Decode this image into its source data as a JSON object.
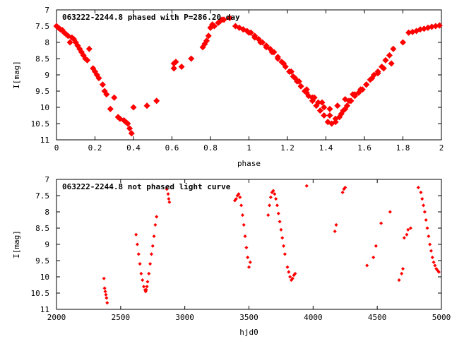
{
  "chart_data": [
    {
      "type": "scatter",
      "title": "063222-2244.8 phased with P=286.20 day",
      "xlabel": "phase",
      "ylabel": "I[mag]",
      "xlim": [
        0,
        2
      ],
      "ylim": [
        11,
        7
      ],
      "y_inverted": true,
      "grid": false,
      "xticks": [
        "0",
        "0.2",
        "0.4",
        "0.6",
        "0.8",
        "1",
        "1.2",
        "1.4",
        "1.6",
        "1.8",
        "2"
      ],
      "yticks": [
        "7",
        "7.5",
        "8",
        "8.5",
        "9",
        "9.5",
        "10",
        "10.5",
        "11"
      ],
      "marker_color": "#ff0000",
      "series": [
        {
          "x": [
            0.0,
            0.01,
            0.02,
            0.03,
            0.04,
            0.05,
            0.06,
            0.07,
            0.08,
            0.09,
            0.1,
            0.11,
            0.12,
            0.13,
            0.14,
            0.15,
            0.16,
            0.17,
            0.19,
            0.2,
            0.21,
            0.22,
            0.24,
            0.25,
            0.26,
            0.28,
            0.3,
            0.32,
            0.33,
            0.35,
            0.36,
            0.37,
            0.38,
            0.39,
            0.4,
            0.47,
            0.52,
            0.61,
            0.61,
            0.62,
            0.65,
            0.7,
            0.76,
            0.77,
            0.78,
            0.79,
            0.8,
            0.81,
            0.82,
            0.84,
            0.85,
            0.86,
            0.87,
            0.9
          ],
          "y": [
            7.5,
            7.55,
            7.6,
            7.62,
            7.7,
            7.75,
            7.8,
            8.0,
            7.85,
            7.9,
            8.0,
            8.1,
            8.2,
            8.3,
            8.4,
            8.5,
            8.55,
            8.2,
            8.8,
            8.9,
            9.0,
            9.1,
            9.3,
            9.5,
            9.6,
            10.05,
            9.7,
            10.3,
            10.35,
            10.4,
            10.45,
            10.5,
            10.65,
            10.8,
            10.0,
            9.95,
            9.8,
            8.65,
            8.8,
            8.6,
            8.75,
            8.5,
            8.15,
            8.05,
            7.95,
            7.8,
            7.55,
            7.45,
            7.5,
            7.4,
            7.35,
            7.3,
            7.3,
            7.25
          ]
        },
        {
          "x": [
            0.93,
            0.95,
            0.97,
            0.99,
            1.01,
            1.03,
            1.05,
            1.07,
            1.09,
            1.11,
            1.13,
            1.15,
            1.17,
            1.19,
            1.21,
            1.23,
            1.25,
            1.27,
            1.29,
            1.31,
            1.33,
            1.35,
            1.37,
            1.39,
            1.41,
            1.43,
            1.45,
            1.47,
            1.49,
            1.51,
            1.53,
            1.55,
            1.57,
            1.59,
            1.61,
            1.63,
            1.65,
            1.67,
            1.69,
            1.71,
            1.73,
            1.75,
            1.8,
            1.83,
            1.85,
            1.87,
            1.89,
            1.91,
            1.93,
            1.95,
            1.97,
            1.99
          ],
          "y": [
            7.5,
            7.55,
            7.6,
            7.65,
            7.7,
            7.8,
            7.9,
            8.0,
            8.1,
            8.2,
            8.3,
            8.45,
            8.6,
            8.75,
            8.9,
            9.05,
            9.2,
            9.35,
            9.5,
            9.65,
            9.8,
            9.95,
            10.1,
            10.25,
            10.45,
            10.5,
            10.45,
            10.3,
            10.1,
            9.95,
            9.8,
            9.65,
            9.55,
            9.45,
            9.3,
            9.15,
            9.0,
            8.9,
            8.75,
            8.55,
            8.4,
            8.2,
            8.0,
            7.7,
            7.68,
            7.65,
            7.6,
            7.58,
            7.55,
            7.52,
            7.5,
            7.48
          ]
        },
        {
          "x": [
            0.97,
            1.0,
            1.03,
            1.06,
            1.09,
            1.12,
            1.15,
            1.18,
            1.21,
            1.24,
            1.27,
            1.3,
            1.33,
            1.36,
            1.39,
            1.42,
            1.45,
            1.48,
            1.5,
            1.52,
            1.55,
            1.58,
            1.61,
            1.64,
            1.67,
            1.7,
            1.74
          ],
          "y": [
            7.6,
            7.7,
            7.85,
            8.0,
            8.15,
            8.3,
            8.5,
            8.65,
            8.9,
            9.1,
            9.35,
            9.55,
            9.7,
            9.85,
            10.0,
            10.25,
            10.35,
            10.2,
            10.05,
            9.8,
            9.6,
            9.45,
            9.3,
            9.1,
            8.95,
            8.8,
            8.65
          ]
        },
        {
          "x": [
            1.22,
            1.26,
            1.3,
            1.34,
            1.38,
            1.42,
            1.46,
            1.5,
            1.54
          ],
          "y": [
            8.9,
            9.2,
            9.45,
            9.7,
            9.85,
            10.05,
            9.95,
            9.75,
            9.6
          ]
        }
      ]
    },
    {
      "type": "scatter",
      "title": "063222-2244.8 not phased light curve",
      "xlabel": "hjd0",
      "ylabel": "I[mag]",
      "xlim": [
        2000,
        5000
      ],
      "ylim": [
        11,
        7
      ],
      "y_inverted": true,
      "grid": false,
      "xticks": [
        "2000",
        "2500",
        "3000",
        "3500",
        "4000",
        "4500",
        "5000"
      ],
      "yticks": [
        "7",
        "7.5",
        "8",
        "8.5",
        "9",
        "9.5",
        "10",
        "10.5",
        "11"
      ],
      "marker_color": "#ff0000",
      "series": [
        {
          "x": [
            2370,
            2375,
            2380,
            2385,
            2390,
            2395,
            2620,
            2630,
            2640,
            2650,
            2660,
            2670,
            2680,
            2690,
            2695,
            2700,
            2705,
            2710,
            2720,
            2730,
            2740,
            2750,
            2760,
            2770,
            2780,
            2860,
            2870,
            2875,
            2880,
            3390,
            3400,
            3410,
            3420,
            3430,
            3440,
            3450,
            3460,
            3470,
            3480,
            3490,
            3500,
            3510,
            3650,
            3660,
            3670,
            3680,
            3690,
            3700,
            3710,
            3720,
            3730,
            3740,
            3750,
            3760,
            3770,
            3780,
            3800,
            3810,
            3820,
            3830,
            3840,
            3850,
            3860,
            3950,
            4170,
            4180,
            4230,
            4240,
            4250,
            4420,
            4470,
            4490,
            4530,
            4600,
            4670,
            4690,
            4700,
            4710,
            4730,
            4740,
            4760,
            4820,
            4840,
            4850,
            4860,
            4870,
            4880,
            4890,
            4900,
            4910,
            4920,
            4930,
            4940,
            4950,
            4960,
            4970,
            4980
          ],
          "y": [
            10.05,
            10.35,
            10.45,
            10.55,
            10.65,
            10.8,
            8.7,
            9.0,
            9.3,
            9.6,
            9.9,
            10.1,
            10.3,
            10.4,
            10.45,
            10.4,
            10.3,
            10.15,
            9.9,
            9.6,
            9.3,
            9.05,
            8.75,
            8.4,
            8.15,
            7.3,
            7.45,
            7.6,
            7.7,
            7.65,
            7.6,
            7.5,
            7.45,
            7.55,
            7.8,
            8.1,
            8.4,
            8.75,
            9.1,
            9.4,
            9.7,
            9.55,
            8.1,
            7.8,
            7.55,
            7.4,
            7.35,
            7.45,
            7.6,
            7.8,
            8.05,
            8.3,
            8.55,
            8.8,
            9.05,
            9.3,
            9.7,
            9.85,
            10.0,
            10.1,
            10.05,
            9.95,
            9.9,
            7.2,
            8.6,
            8.4,
            7.4,
            7.3,
            7.25,
            9.65,
            9.4,
            9.05,
            8.35,
            8.0,
            10.1,
            9.9,
            9.75,
            8.8,
            8.7,
            8.55,
            8.5,
            7.25,
            7.4,
            7.6,
            7.8,
            8.0,
            8.25,
            8.5,
            8.75,
            9.0,
            9.2,
            9.4,
            9.55,
            9.65,
            9.75,
            9.8,
            9.85
          ]
        }
      ]
    }
  ]
}
